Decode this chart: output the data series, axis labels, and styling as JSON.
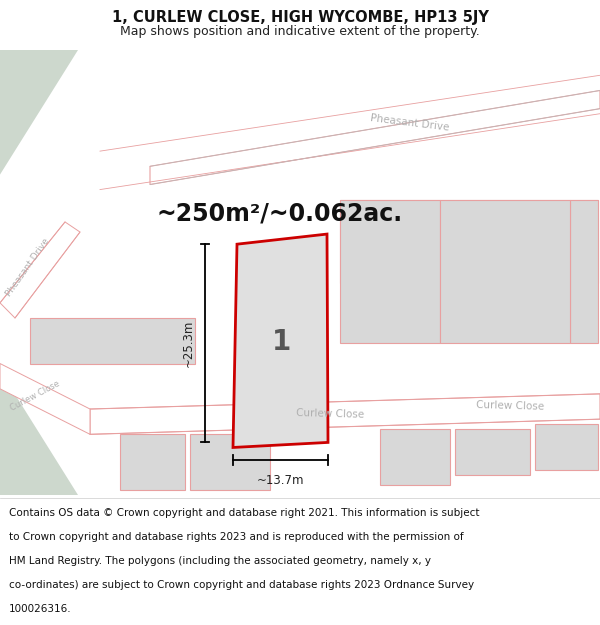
{
  "title": "1, CURLEW CLOSE, HIGH WYCOMBE, HP13 5JY",
  "subtitle": "Map shows position and indicative extent of the property.",
  "area_text": "~250m²/~0.062ac.",
  "plot_number": "1",
  "dim_width": "~13.7m",
  "dim_height": "~25.3m",
  "footer": "Contains OS data © Crown copyright and database right 2021. This information is subject to Crown copyright and database rights 2023 and is reproduced with the permission of HM Land Registry. The polygons (including the associated geometry, namely x, y co-ordinates) are subject to Crown copyright and database rights 2023 Ordnance Survey 100026316.",
  "map_bg": "#ffffff",
  "road_border": "#e8a0a0",
  "plot_fill": "#e0e0e0",
  "plot_outline": "#cc0000",
  "other_plot_fill": "#d8d8d8",
  "other_plot_outline": "#e8a0a0",
  "green_fill": "#cdd8cd",
  "title_fontsize": 10.5,
  "subtitle_fontsize": 9,
  "area_fontsize": 17,
  "footer_fontsize": 7.5,
  "road_label_color": "#b0b0b0",
  "dim_color": "#222222",
  "plot_label_color": "#555555"
}
